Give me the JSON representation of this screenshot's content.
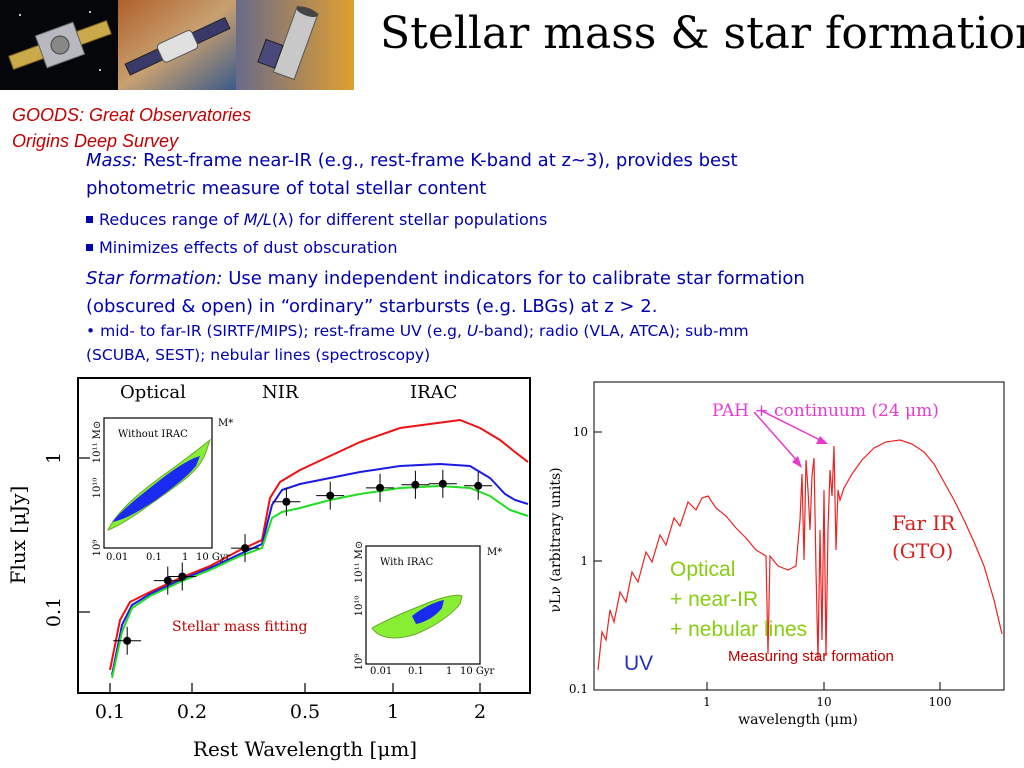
{
  "header": {
    "title": "Stellar mass & star formation",
    "goods_line1": "GOODS: Great Observatories",
    "goods_line2": "Origins Deep Survey"
  },
  "images": {
    "thumbs": [
      "spacecraft-1-image",
      "spacecraft-2-image",
      "spacecraft-3-image"
    ]
  },
  "body": {
    "mass_label": "Mass:",
    "mass_text1": "Rest-frame near-IR  (e.g., rest-frame K-band at z~3), provides best",
    "mass_text2": "photometric measure of total stellar content",
    "bullet1_pre": "Reduces range of ",
    "bullet1_ml": "M/L",
    "bullet1_lambda": "(λ)",
    "bullet1_post": " for different stellar populations",
    "bullet2": "Minimizes effects of dust obscuration",
    "sf_label": "Star formation:",
    "sf_text1": "Use many independent indicators for to calibrate star formation",
    "sf_text2": "(obscured & open) in “ordinary” starbursts (e.g. LBGs)  at z > 2.",
    "sub_bullet": "•",
    "sub1_pre": "mid- to far-IR (SIRTF/MIPS);  rest-frame UV (e.g, ",
    "sub1_u": "U",
    "sub1_post": "-band);  radio (VLA, ATCA);  sub-mm",
    "sub2": "(SCUBA, SEST);  nebular lines (spectroscopy)"
  },
  "chart_data": [
    {
      "type": "line",
      "regions": [
        "Optical",
        "NIR",
        "IRAC"
      ],
      "xlabel": "Rest Wavelength [μm]",
      "ylabel": "Flux [μJy]",
      "x_ticks": [
        "0.1",
        "0.2",
        "0.5",
        "1",
        "2"
      ],
      "y_ticks": [
        "0.1",
        "1"
      ],
      "x_scale": "log",
      "y_scale": "log",
      "caption": "Stellar mass fitting",
      "points": [
        {
          "x": 0.115,
          "y": 0.065
        },
        {
          "x": 0.16,
          "y": 0.16
        },
        {
          "x": 0.18,
          "y": 0.17
        },
        {
          "x": 0.3,
          "y": 0.26
        },
        {
          "x": 0.42,
          "y": 0.52
        },
        {
          "x": 0.6,
          "y": 0.57
        },
        {
          "x": 0.9,
          "y": 0.64
        },
        {
          "x": 1.2,
          "y": 0.67
        },
        {
          "x": 1.5,
          "y": 0.68
        },
        {
          "x": 2.0,
          "y": 0.66
        }
      ],
      "inset_top": {
        "title": "Without IRAC",
        "ylabel_ticks": [
          "10⁹",
          "10¹⁰",
          "10¹¹ M⊙"
        ],
        "xlabel_ticks": [
          "0.01",
          "0.1",
          "1",
          "10 Gyr"
        ],
        "marker": "M*"
      },
      "inset_bottom": {
        "title": "With IRAC",
        "ylabel_ticks": [
          "10⁹",
          "10¹⁰",
          "10¹¹ M⊙"
        ],
        "xlabel_ticks": [
          "0.01",
          "0.1",
          "1",
          "10 Gyr"
        ],
        "marker": "M*"
      }
    },
    {
      "type": "line",
      "xlabel": "wavelength (μm)",
      "ylabel": "νLν (arbitrary units)",
      "x_ticks": [
        "1",
        "10",
        "100"
      ],
      "y_ticks": [
        "0.1",
        "1",
        "10"
      ],
      "x_scale": "log",
      "y_scale": "log",
      "xlim": [
        0.2,
        300
      ],
      "ylim": [
        0.1,
        20
      ],
      "annotations": {
        "pah": "PAH + continuum (24 μm)",
        "far_ir_1": "Far IR",
        "far_ir_2": "(GTO)",
        "optical_1": "Optical",
        "optical_2": "+ near-IR",
        "optical_3": "+ nebular lines",
        "uv": "UV",
        "caption": "Measuring star formation"
      }
    }
  ]
}
